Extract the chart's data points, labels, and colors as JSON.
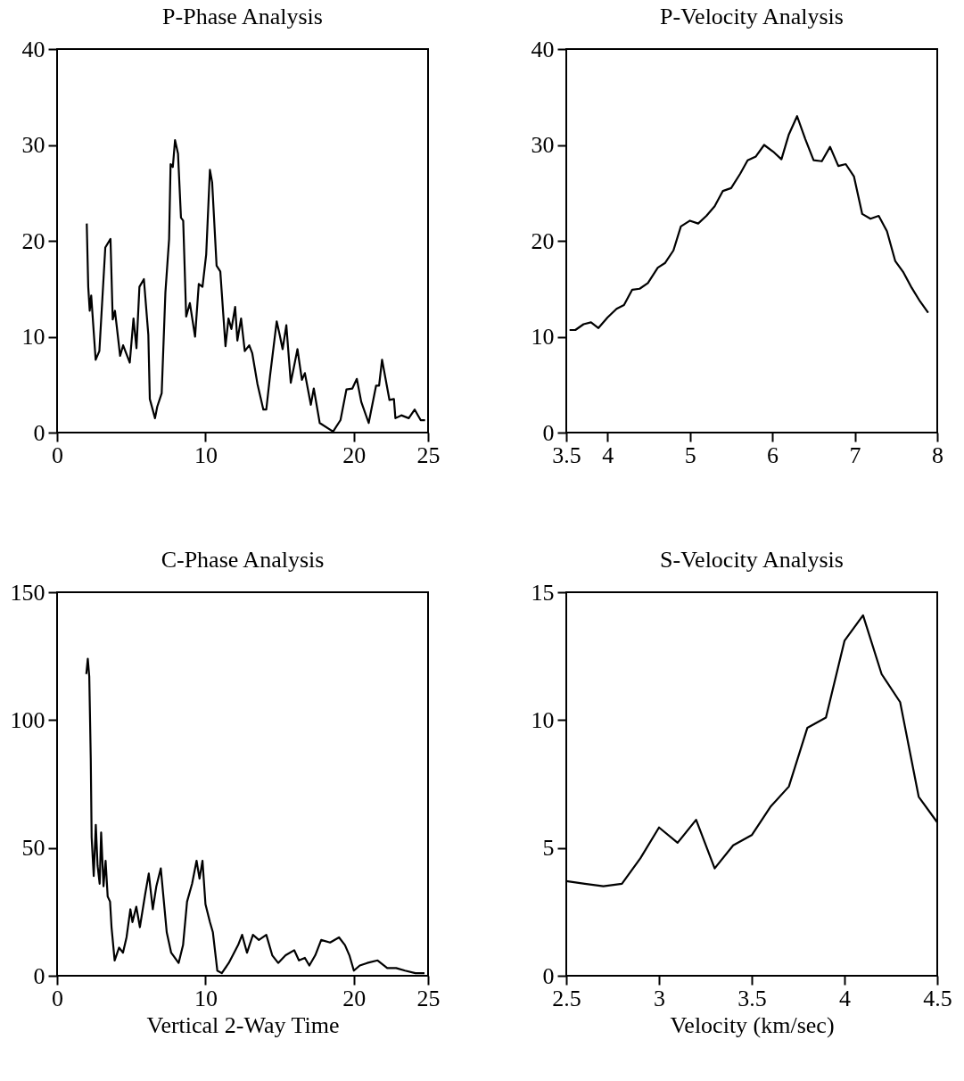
{
  "chart_data": [
    {
      "type": "line",
      "title": "P-Phase Analysis",
      "xlim": [
        0,
        25
      ],
      "xticks": [
        0,
        10,
        20,
        25
      ],
      "ylim": [
        0,
        40
      ],
      "yticks": [
        0,
        10,
        20,
        30,
        40
      ],
      "grid": false,
      "series": [
        {
          "color": "#000000",
          "x": [
            2.0,
            2.1,
            2.2,
            2.3,
            2.6,
            2.85,
            3.25,
            3.6,
            3.75,
            3.9,
            4.25,
            4.45,
            4.9,
            5.15,
            5.35,
            5.55,
            5.85,
            6.15,
            6.25,
            6.6,
            6.75,
            7.05,
            7.3,
            7.55,
            7.65,
            7.8,
            7.95,
            8.15,
            8.35,
            8.5,
            8.7,
            8.95,
            9.3,
            9.55,
            9.8,
            10.05,
            10.3,
            10.45,
            10.75,
            11.0,
            11.35,
            11.55,
            11.75,
            12.0,
            12.15,
            12.4,
            12.65,
            12.95,
            13.15,
            13.5,
            13.9,
            14.1,
            14.35,
            14.8,
            15.0,
            15.2,
            15.45,
            15.75,
            16.2,
            16.5,
            16.7,
            17.1,
            17.3,
            17.7,
            18.6,
            19.1,
            19.5,
            19.9,
            20.2,
            20.5,
            21.0,
            21.5,
            21.7,
            21.9,
            22.4,
            22.7,
            22.8,
            23.2,
            23.7,
            24.1,
            24.5,
            24.8
          ],
          "values": [
            21.8,
            15.2,
            12.7,
            14.3,
            7.6,
            8.5,
            19.3,
            20.2,
            11.8,
            12.7,
            8.0,
            9.1,
            7.3,
            11.9,
            8.8,
            15.2,
            16.0,
            10.2,
            3.5,
            1.5,
            2.7,
            4.1,
            14.6,
            20.2,
            28.0,
            27.7,
            30.5,
            29.1,
            22.4,
            22.1,
            12.1,
            13.5,
            10.0,
            15.5,
            15.2,
            18.6,
            27.4,
            26.1,
            17.4,
            16.8,
            9.0,
            11.9,
            10.8,
            13.1,
            9.6,
            11.9,
            8.5,
            9.1,
            8.3,
            5.1,
            2.4,
            2.4,
            5.9,
            11.6,
            10.2,
            8.7,
            11.2,
            5.2,
            8.7,
            5.5,
            6.2,
            2.9,
            4.6,
            1.0,
            0.1,
            1.3,
            4.5,
            4.6,
            5.6,
            3.2,
            1.0,
            4.9,
            4.9,
            7.6,
            3.4,
            3.5,
            1.5,
            1.8,
            1.5,
            2.4,
            1.3,
            1.3
          ]
        }
      ]
    },
    {
      "type": "line",
      "title": "P-Velocity Analysis",
      "xlim": [
        3.5,
        8
      ],
      "xticks": [
        3.5,
        4,
        5,
        6,
        7,
        8
      ],
      "ylim": [
        0,
        40
      ],
      "yticks": [
        0,
        10,
        20,
        30,
        40
      ],
      "grid": false,
      "series": [
        {
          "color": "#000000",
          "x": [
            3.54,
            3.61,
            3.71,
            3.8,
            3.89,
            4.0,
            4.11,
            4.2,
            4.3,
            4.39,
            4.49,
            4.61,
            4.7,
            4.8,
            4.89,
            5.0,
            5.1,
            5.2,
            5.3,
            5.4,
            5.5,
            5.61,
            5.7,
            5.8,
            5.9,
            6.01,
            6.11,
            6.2,
            6.3,
            6.4,
            6.5,
            6.6,
            6.7,
            6.8,
            6.89,
            6.99,
            7.09,
            7.19,
            7.29,
            7.39,
            7.49,
            7.59,
            7.69,
            7.79,
            7.89
          ],
          "values": [
            10.7,
            10.7,
            11.3,
            11.5,
            10.9,
            12.0,
            12.9,
            13.3,
            14.9,
            15.0,
            15.6,
            17.2,
            17.7,
            19.0,
            21.5,
            22.1,
            21.8,
            22.6,
            23.6,
            25.2,
            25.5,
            27.0,
            28.4,
            28.8,
            30.0,
            29.3,
            28.5,
            31.1,
            33.0,
            30.6,
            28.4,
            28.3,
            29.8,
            27.8,
            28.0,
            26.7,
            22.8,
            22.3,
            22.6,
            21.0,
            17.9,
            16.7,
            15.1,
            13.7,
            12.5
          ]
        }
      ]
    },
    {
      "type": "line",
      "title": "C-Phase Analysis",
      "xlabel": "Vertical 2-Way Time",
      "xlim": [
        0,
        25
      ],
      "xticks": [
        0,
        10,
        20,
        25
      ],
      "ylim": [
        0,
        150
      ],
      "yticks": [
        0,
        50,
        100,
        150
      ],
      "grid": false,
      "series": [
        {
          "color": "#000000",
          "x": [
            1.97,
            2.07,
            2.17,
            2.27,
            2.33,
            2.47,
            2.61,
            2.73,
            2.87,
            2.97,
            3.13,
            3.27,
            3.41,
            3.57,
            3.67,
            3.88,
            4.18,
            4.44,
            4.68,
            4.94,
            5.08,
            5.34,
            5.58,
            5.94,
            6.18,
            6.45,
            6.69,
            6.99,
            7.39,
            7.69,
            8.19,
            8.49,
            8.76,
            9.1,
            9.4,
            9.6,
            9.8,
            10.0,
            10.3,
            10.5,
            10.8,
            11.1,
            11.57,
            12.2,
            12.47,
            12.8,
            13.2,
            13.6,
            14.1,
            14.5,
            14.9,
            15.4,
            15.98,
            16.3,
            16.7,
            17.0,
            17.4,
            17.8,
            18.4,
            19.0,
            19.4,
            19.7,
            20.0,
            20.4,
            20.9,
            21.6,
            22.25,
            22.85,
            23.45,
            24.15,
            24.76
          ],
          "values": [
            118,
            124,
            117,
            85,
            54,
            39,
            59,
            43,
            36,
            56,
            35,
            45,
            31,
            29,
            19,
            6,
            11,
            9,
            15,
            26,
            21,
            27,
            19,
            32,
            40,
            26,
            35,
            42,
            17,
            9,
            5,
            12,
            29,
            36,
            45,
            38,
            45,
            28,
            21,
            17,
            2,
            1,
            5,
            12,
            16,
            9,
            16,
            14,
            16,
            8,
            5,
            8,
            10,
            6,
            7,
            4,
            8,
            14,
            13,
            15,
            12,
            8,
            2,
            4,
            5,
            6,
            3,
            3,
            2,
            1,
            1
          ]
        }
      ]
    },
    {
      "type": "line",
      "title": "S-Velocity Analysis",
      "xlabel": "Velocity (km/sec)",
      "xlim": [
        2.5,
        4.5
      ],
      "xticks": [
        2.5,
        3,
        3.5,
        4,
        4.5
      ],
      "ylim": [
        0,
        15
      ],
      "yticks": [
        0,
        5,
        10,
        15
      ],
      "grid": false,
      "series": [
        {
          "color": "#000000",
          "x": [
            2.5,
            2.6,
            2.7,
            2.8,
            2.9,
            3.0,
            3.1,
            3.2,
            3.3,
            3.4,
            3.5,
            3.6,
            3.7,
            3.8,
            3.9,
            4.0,
            4.1,
            4.2,
            4.3,
            4.4,
            4.5
          ],
          "values": [
            3.7,
            3.6,
            3.5,
            3.6,
            4.6,
            5.8,
            5.2,
            6.1,
            4.2,
            5.1,
            5.5,
            6.6,
            7.4,
            9.7,
            10.1,
            13.1,
            14.1,
            11.8,
            10.7,
            7.0,
            6.0
          ]
        }
      ]
    }
  ]
}
